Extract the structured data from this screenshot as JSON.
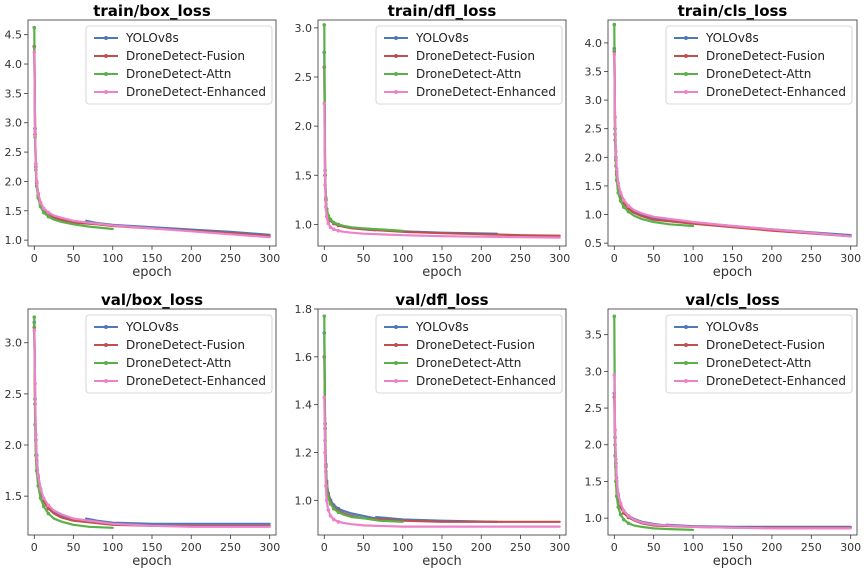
{
  "chart_data": [
    {
      "type": "line",
      "title": "train/box_loss",
      "xlabel": "epoch",
      "xlim": [
        -8,
        308
      ],
      "ylim": [
        0.9,
        4.75
      ],
      "xticks": [
        0,
        50,
        100,
        150,
        200,
        250,
        300
      ],
      "yticks": [
        1.0,
        1.5,
        2.0,
        2.5,
        3.0,
        3.5,
        4.0,
        4.5
      ],
      "legend": "top-right",
      "series": [
        {
          "name": "YOLOv8s",
          "color": "#4e79b9",
          "x": [
            0,
            1,
            2,
            3,
            5,
            8,
            12,
            18,
            25,
            35,
            50,
            65,
            66,
            80,
            100,
            150,
            200,
            250,
            300
          ],
          "y": [
            4.3,
            2.9,
            2.3,
            2.0,
            1.78,
            1.62,
            1.52,
            1.45,
            1.4,
            1.36,
            1.31,
            1.29,
            1.33,
            1.29,
            1.26,
            1.22,
            1.18,
            1.14,
            1.09
          ]
        },
        {
          "name": "DroneDetect-Fusion",
          "color": "#c0504d",
          "x": [
            0,
            1,
            2,
            3,
            5,
            8,
            12,
            18,
            25,
            35,
            50,
            80,
            100,
            150,
            200,
            250,
            300
          ],
          "y": [
            4.3,
            2.8,
            2.25,
            1.97,
            1.76,
            1.6,
            1.5,
            1.43,
            1.38,
            1.34,
            1.3,
            1.27,
            1.24,
            1.2,
            1.16,
            1.12,
            1.07
          ]
        },
        {
          "name": "DroneDetect-Attn",
          "color": "#5bb04a",
          "x": [
            0,
            1,
            2,
            3,
            5,
            8,
            12,
            18,
            25,
            35,
            50,
            70,
            100
          ],
          "y": [
            4.62,
            2.75,
            2.2,
            1.92,
            1.72,
            1.57,
            1.47,
            1.4,
            1.35,
            1.31,
            1.27,
            1.23,
            1.19
          ]
        },
        {
          "name": "DroneDetect-Enhanced",
          "color": "#ee82c8",
          "x": [
            0,
            1,
            2,
            3,
            5,
            8,
            12,
            18,
            25,
            35,
            50,
            80,
            100,
            150,
            200,
            250,
            300
          ],
          "y": [
            4.2,
            2.85,
            2.3,
            2.0,
            1.8,
            1.64,
            1.54,
            1.47,
            1.42,
            1.38,
            1.33,
            1.28,
            1.25,
            1.2,
            1.15,
            1.1,
            1.05
          ]
        }
      ]
    },
    {
      "type": "line",
      "title": "train/dfl_loss",
      "xlabel": "epoch",
      "xlim": [
        -8,
        308
      ],
      "ylim": [
        0.78,
        3.08
      ],
      "xticks": [
        0,
        50,
        100,
        150,
        200,
        250,
        300
      ],
      "yticks": [
        1.0,
        1.5,
        2.0,
        2.5,
        3.0
      ],
      "legend": "top-right",
      "series": [
        {
          "name": "YOLOv8s",
          "color": "#4e79b9",
          "x": [
            0,
            1,
            2,
            3,
            5,
            8,
            12,
            18,
            25,
            35,
            50,
            65,
            66,
            100,
            150,
            220
          ],
          "y": [
            2.75,
            1.5,
            1.25,
            1.15,
            1.08,
            1.04,
            1.01,
            0.99,
            0.98,
            0.965,
            0.95,
            0.94,
            0.945,
            0.93,
            0.915,
            0.905
          ]
        },
        {
          "name": "DroneDetect-Fusion",
          "color": "#c0504d",
          "x": [
            0,
            1,
            2,
            3,
            5,
            8,
            12,
            18,
            25,
            35,
            50,
            100,
            150,
            200,
            250,
            300
          ],
          "y": [
            2.6,
            1.5,
            1.25,
            1.15,
            1.08,
            1.04,
            1.01,
            0.99,
            0.975,
            0.96,
            0.95,
            0.925,
            0.91,
            0.9,
            0.89,
            0.885
          ]
        },
        {
          "name": "DroneDetect-Attn",
          "color": "#5bb04a",
          "x": [
            0,
            1,
            2,
            3,
            5,
            8,
            12,
            18,
            25,
            35,
            50,
            70,
            100
          ],
          "y": [
            3.03,
            1.55,
            1.27,
            1.16,
            1.09,
            1.05,
            1.02,
            1.0,
            0.985,
            0.97,
            0.96,
            0.95,
            0.935
          ]
        },
        {
          "name": "DroneDetect-Enhanced",
          "color": "#ee82c8",
          "x": [
            0,
            1,
            2,
            3,
            5,
            8,
            12,
            18,
            25,
            35,
            50,
            100,
            150,
            200,
            250,
            300
          ],
          "y": [
            2.23,
            1.4,
            1.18,
            1.08,
            1.01,
            0.97,
            0.95,
            0.935,
            0.925,
            0.915,
            0.905,
            0.89,
            0.88,
            0.875,
            0.87,
            0.865
          ]
        }
      ]
    },
    {
      "type": "line",
      "title": "train/cls_loss",
      "xlabel": "epoch",
      "xlim": [
        -8,
        308
      ],
      "ylim": [
        0.45,
        4.4
      ],
      "xticks": [
        0,
        50,
        100,
        150,
        200,
        250,
        300
      ],
      "yticks": [
        0.5,
        1.0,
        1.5,
        2.0,
        2.5,
        3.0,
        3.5,
        4.0
      ],
      "legend": "top-right",
      "series": [
        {
          "name": "YOLOv8s",
          "color": "#4e79b9",
          "x": [
            0,
            1,
            2,
            3,
            5,
            8,
            12,
            18,
            25,
            35,
            50,
            65,
            66,
            100,
            150,
            200,
            250,
            300
          ],
          "y": [
            3.9,
            2.5,
            2.0,
            1.75,
            1.5,
            1.35,
            1.22,
            1.12,
            1.05,
            0.99,
            0.93,
            0.9,
            0.92,
            0.86,
            0.8,
            0.74,
            0.69,
            0.64
          ]
        },
        {
          "name": "DroneDetect-Fusion",
          "color": "#c0504d",
          "x": [
            0,
            1,
            2,
            3,
            5,
            8,
            12,
            18,
            25,
            35,
            50,
            100,
            150,
            200,
            250,
            300
          ],
          "y": [
            3.85,
            2.4,
            1.95,
            1.7,
            1.46,
            1.32,
            1.2,
            1.1,
            1.03,
            0.97,
            0.91,
            0.84,
            0.78,
            0.72,
            0.67,
            0.62
          ]
        },
        {
          "name": "DroneDetect-Attn",
          "color": "#5bb04a",
          "x": [
            0,
            1,
            2,
            3,
            5,
            8,
            12,
            18,
            25,
            35,
            50,
            70,
            100
          ],
          "y": [
            4.32,
            2.3,
            1.85,
            1.6,
            1.38,
            1.24,
            1.13,
            1.05,
            0.98,
            0.92,
            0.87,
            0.83,
            0.8
          ]
        },
        {
          "name": "DroneDetect-Enhanced",
          "color": "#ee82c8",
          "x": [
            0,
            1,
            2,
            3,
            5,
            8,
            12,
            18,
            25,
            35,
            50,
            100,
            150,
            200,
            250,
            300
          ],
          "y": [
            3.8,
            2.7,
            2.1,
            1.8,
            1.55,
            1.38,
            1.25,
            1.15,
            1.08,
            1.02,
            0.96,
            0.87,
            0.8,
            0.74,
            0.68,
            0.62
          ]
        }
      ]
    },
    {
      "type": "line",
      "title": "val/box_loss",
      "xlabel": "epoch",
      "xlim": [
        -8,
        308
      ],
      "ylim": [
        1.12,
        3.33
      ],
      "xticks": [
        0,
        50,
        100,
        150,
        200,
        250,
        300
      ],
      "yticks": [
        1.5,
        2.0,
        2.5,
        3.0
      ],
      "legend": "top-right",
      "series": [
        {
          "name": "YOLOv8s",
          "color": "#4e79b9",
          "x": [
            0,
            1,
            2,
            3,
            5,
            8,
            12,
            18,
            25,
            35,
            50,
            65,
            66,
            80,
            100,
            150,
            200,
            250,
            300
          ],
          "y": [
            3.2,
            2.45,
            2.1,
            1.9,
            1.7,
            1.57,
            1.47,
            1.4,
            1.35,
            1.31,
            1.27,
            1.25,
            1.28,
            1.26,
            1.24,
            1.23,
            1.23,
            1.23,
            1.23
          ]
        },
        {
          "name": "DroneDetect-Fusion",
          "color": "#c0504d",
          "x": [
            0,
            1,
            2,
            3,
            5,
            8,
            12,
            18,
            25,
            35,
            50,
            100,
            150,
            200,
            250,
            300
          ],
          "y": [
            3.15,
            2.4,
            2.05,
            1.85,
            1.68,
            1.55,
            1.45,
            1.38,
            1.33,
            1.29,
            1.26,
            1.22,
            1.21,
            1.21,
            1.21,
            1.21
          ]
        },
        {
          "name": "DroneDetect-Attn",
          "color": "#5bb04a",
          "x": [
            0,
            1,
            2,
            3,
            5,
            8,
            12,
            18,
            25,
            35,
            50,
            70,
            100
          ],
          "y": [
            3.25,
            2.2,
            1.9,
            1.75,
            1.6,
            1.48,
            1.4,
            1.33,
            1.28,
            1.25,
            1.22,
            1.2,
            1.19
          ]
        },
        {
          "name": "DroneDetect-Enhanced",
          "color": "#ee82c8",
          "x": [
            0,
            1,
            2,
            3,
            5,
            8,
            12,
            18,
            25,
            35,
            50,
            100,
            150,
            200,
            250,
            300
          ],
          "y": [
            3.12,
            2.6,
            2.1,
            1.88,
            1.7,
            1.57,
            1.48,
            1.41,
            1.36,
            1.32,
            1.28,
            1.23,
            1.21,
            1.2,
            1.2,
            1.2
          ]
        }
      ]
    },
    {
      "type": "line",
      "title": "val/dfl_loss",
      "xlabel": "epoch",
      "xlim": [
        -8,
        308
      ],
      "ylim": [
        0.855,
        1.8
      ],
      "xticks": [
        0,
        50,
        100,
        150,
        200,
        250,
        300
      ],
      "yticks": [
        1.0,
        1.2,
        1.4,
        1.6,
        1.8
      ],
      "legend": "top-right",
      "series": [
        {
          "name": "YOLOv8s",
          "color": "#4e79b9",
          "x": [
            0,
            1,
            2,
            3,
            5,
            8,
            12,
            18,
            25,
            35,
            50,
            65,
            66,
            100,
            150,
            220
          ],
          "y": [
            1.7,
            1.32,
            1.15,
            1.08,
            1.03,
            1.0,
            0.98,
            0.965,
            0.955,
            0.945,
            0.935,
            0.925,
            0.93,
            0.92,
            0.915,
            0.91
          ]
        },
        {
          "name": "DroneDetect-Fusion",
          "color": "#c0504d",
          "x": [
            0,
            1,
            2,
            3,
            5,
            8,
            12,
            18,
            25,
            35,
            50,
            100,
            150,
            200,
            250,
            300
          ],
          "y": [
            1.6,
            1.3,
            1.14,
            1.07,
            1.02,
            0.99,
            0.97,
            0.955,
            0.945,
            0.935,
            0.925,
            0.915,
            0.91,
            0.91,
            0.91,
            0.91
          ]
        },
        {
          "name": "DroneDetect-Attn",
          "color": "#5bb04a",
          "x": [
            0,
            1,
            2,
            3,
            5,
            8,
            12,
            18,
            25,
            35,
            50,
            70,
            100
          ],
          "y": [
            1.77,
            1.25,
            1.12,
            1.06,
            1.01,
            0.985,
            0.965,
            0.95,
            0.94,
            0.93,
            0.925,
            0.915,
            0.91
          ]
        },
        {
          "name": "DroneDetect-Enhanced",
          "color": "#ee82c8",
          "x": [
            0,
            1,
            2,
            3,
            5,
            8,
            12,
            18,
            25,
            35,
            50,
            100,
            150,
            200,
            250,
            300
          ],
          "y": [
            1.43,
            1.2,
            1.06,
            1.0,
            0.96,
            0.935,
            0.92,
            0.91,
            0.905,
            0.9,
            0.895,
            0.89,
            0.89,
            0.89,
            0.89,
            0.89
          ]
        }
      ]
    },
    {
      "type": "line",
      "title": "val/cls_loss",
      "xlabel": "epoch",
      "xlim": [
        -8,
        308
      ],
      "ylim": [
        0.77,
        3.85
      ],
      "xticks": [
        0,
        50,
        100,
        150,
        200,
        250,
        300
      ],
      "yticks": [
        1.0,
        1.5,
        2.0,
        2.5,
        3.0,
        3.5
      ],
      "legend": "top-right",
      "series": [
        {
          "name": "YOLOv8s",
          "color": "#4e79b9",
          "x": [
            0,
            1,
            2,
            3,
            5,
            8,
            12,
            18,
            25,
            35,
            50,
            65,
            66,
            100,
            150,
            200,
            250,
            300
          ],
          "y": [
            2.7,
            2.1,
            1.75,
            1.5,
            1.3,
            1.18,
            1.09,
            1.03,
            0.99,
            0.95,
            0.92,
            0.9,
            0.91,
            0.89,
            0.88,
            0.88,
            0.88,
            0.88
          ]
        },
        {
          "name": "DroneDetect-Fusion",
          "color": "#c0504d",
          "x": [
            0,
            1,
            2,
            3,
            5,
            8,
            12,
            18,
            25,
            35,
            50,
            100,
            150,
            200,
            250,
            300
          ],
          "y": [
            2.65,
            2.0,
            1.7,
            1.45,
            1.27,
            1.15,
            1.07,
            1.01,
            0.97,
            0.93,
            0.9,
            0.88,
            0.87,
            0.87,
            0.87,
            0.87
          ]
        },
        {
          "name": "DroneDetect-Attn",
          "color": "#5bb04a",
          "x": [
            0,
            1,
            2,
            3,
            5,
            8,
            12,
            18,
            25,
            35,
            50,
            70,
            100
          ],
          "y": [
            3.75,
            1.85,
            1.5,
            1.3,
            1.15,
            1.05,
            0.98,
            0.93,
            0.9,
            0.88,
            0.86,
            0.85,
            0.84
          ]
        },
        {
          "name": "DroneDetect-Enhanced",
          "color": "#ee82c8",
          "x": [
            0,
            1,
            2,
            3,
            5,
            8,
            12,
            18,
            25,
            35,
            50,
            100,
            150,
            200,
            250,
            300
          ],
          "y": [
            2.95,
            2.2,
            1.8,
            1.55,
            1.33,
            1.2,
            1.1,
            1.03,
            0.98,
            0.94,
            0.91,
            0.88,
            0.87,
            0.86,
            0.86,
            0.86
          ]
        }
      ]
    }
  ]
}
